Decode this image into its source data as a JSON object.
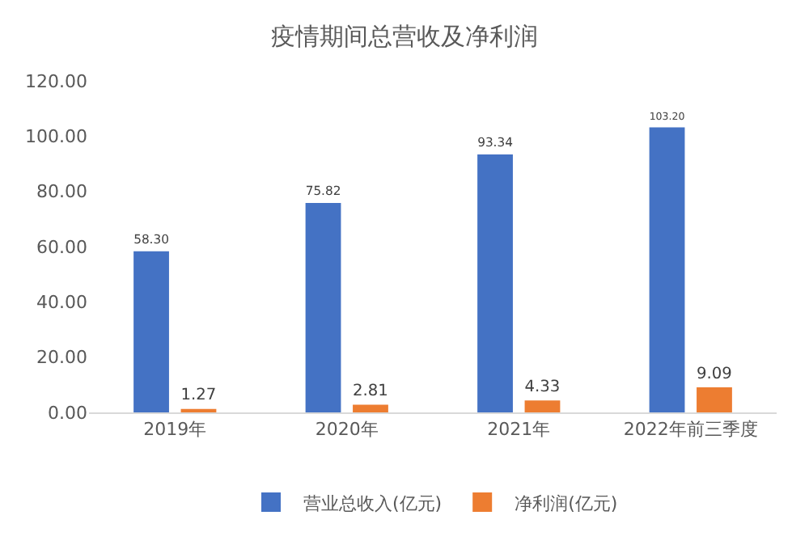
{
  "chart_data": {
    "type": "bar",
    "title": "疫情期间总营收及净利润",
    "categories": [
      "2019年",
      "2020年",
      "2021年",
      "2022年前三季度"
    ],
    "series": [
      {
        "name": "营业总收入(亿元)",
        "color": "#4472c4",
        "values": [
          58.3,
          75.82,
          93.34,
          103.2
        ]
      },
      {
        "name": "净利润(亿元)",
        "color": "#ed7d31",
        "values": [
          1.27,
          2.81,
          4.33,
          9.09
        ]
      }
    ],
    "value_labels": [
      [
        "58.30",
        "75.82",
        "93.34",
        "103.20"
      ],
      [
        "1.27",
        "2.81",
        "4.33",
        "9.09"
      ]
    ],
    "ylim": [
      0,
      120
    ],
    "yticks": [
      {
        "value": 0,
        "label": "0.00"
      },
      {
        "value": 20,
        "label": "20.00"
      },
      {
        "value": 40,
        "label": "40.00"
      },
      {
        "value": 60,
        "label": "60.00"
      },
      {
        "value": 80,
        "label": "80.00"
      },
      {
        "value": 100,
        "label": "100.00"
      },
      {
        "value": 120,
        "label": "120.00"
      }
    ],
    "grid": false,
    "legend": "bottom"
  }
}
